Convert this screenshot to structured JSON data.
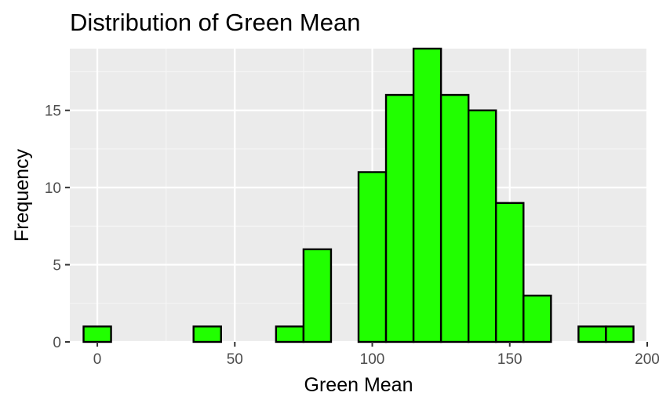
{
  "chart_data": {
    "type": "bar",
    "title": "Distribution of Green Mean",
    "xlabel": "Green Mean",
    "ylabel": "Frequency",
    "bin_width": 10,
    "xlim": [
      -10,
      200
    ],
    "ylim": [
      0,
      19
    ],
    "x_ticks": [
      0,
      50,
      100,
      150,
      200
    ],
    "y_ticks": [
      0,
      5,
      10,
      15
    ],
    "bins": [
      {
        "x": 0,
        "count": 1
      },
      {
        "x": 10,
        "count": 0
      },
      {
        "x": 20,
        "count": 0
      },
      {
        "x": 30,
        "count": 0
      },
      {
        "x": 40,
        "count": 1
      },
      {
        "x": 50,
        "count": 0
      },
      {
        "x": 60,
        "count": 0
      },
      {
        "x": 70,
        "count": 1
      },
      {
        "x": 80,
        "count": 6
      },
      {
        "x": 90,
        "count": 0
      },
      {
        "x": 100,
        "count": 11
      },
      {
        "x": 110,
        "count": 16
      },
      {
        "x": 120,
        "count": 19
      },
      {
        "x": 130,
        "count": 16
      },
      {
        "x": 140,
        "count": 15
      },
      {
        "x": 150,
        "count": 9
      },
      {
        "x": 160,
        "count": 3
      },
      {
        "x": 170,
        "count": 0
      },
      {
        "x": 180,
        "count": 1
      },
      {
        "x": 190,
        "count": 1
      }
    ],
    "grid": true,
    "legend": "none",
    "colors": {
      "bar_fill": "#21FF00",
      "bar_stroke": "#000000",
      "panel_background": "#EBEBEB",
      "grid_major": "#FFFFFF",
      "grid_minor": "#F5F5F5",
      "tick_text": "#4D4D4D"
    }
  }
}
